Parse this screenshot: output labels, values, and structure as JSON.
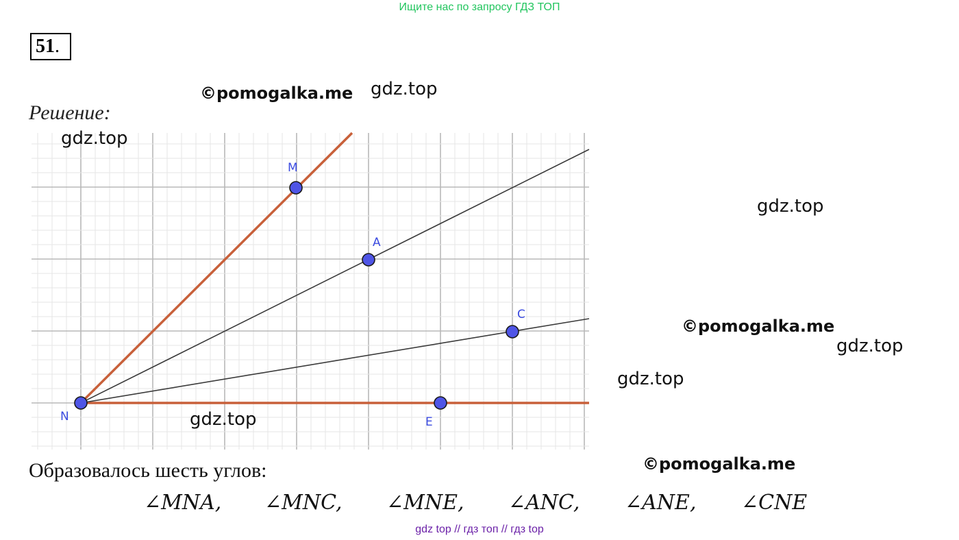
{
  "header": {
    "banner": "Ищите нас по запросу ГДЗ ТОП"
  },
  "problem": {
    "number": "51",
    "number_suffix": "."
  },
  "solution_label": "Решение:",
  "watermarks": {
    "pomogalka": "©pomogalka.me",
    "gdz": "gdz.top"
  },
  "figure": {
    "points": {
      "M": "M",
      "A": "A",
      "C": "C",
      "N": "N",
      "E": "E"
    },
    "colors": {
      "grid_major": "#b8b8b8",
      "grid_minor": "#e6e6e6",
      "orange_ray": "#c8603a",
      "gray_ray": "#3a3a3a",
      "point_fill": "#4f55e6",
      "point_label": "#3b4be0"
    }
  },
  "conclusion": "Образовалось шесть углов:",
  "angles": [
    "∠MNA,",
    "∠MNC,",
    "∠MNE,",
    "∠ANC,",
    "∠ANE,",
    "∠CNE"
  ],
  "footer": "gdz top  //  гдз топ  //  гдз top"
}
